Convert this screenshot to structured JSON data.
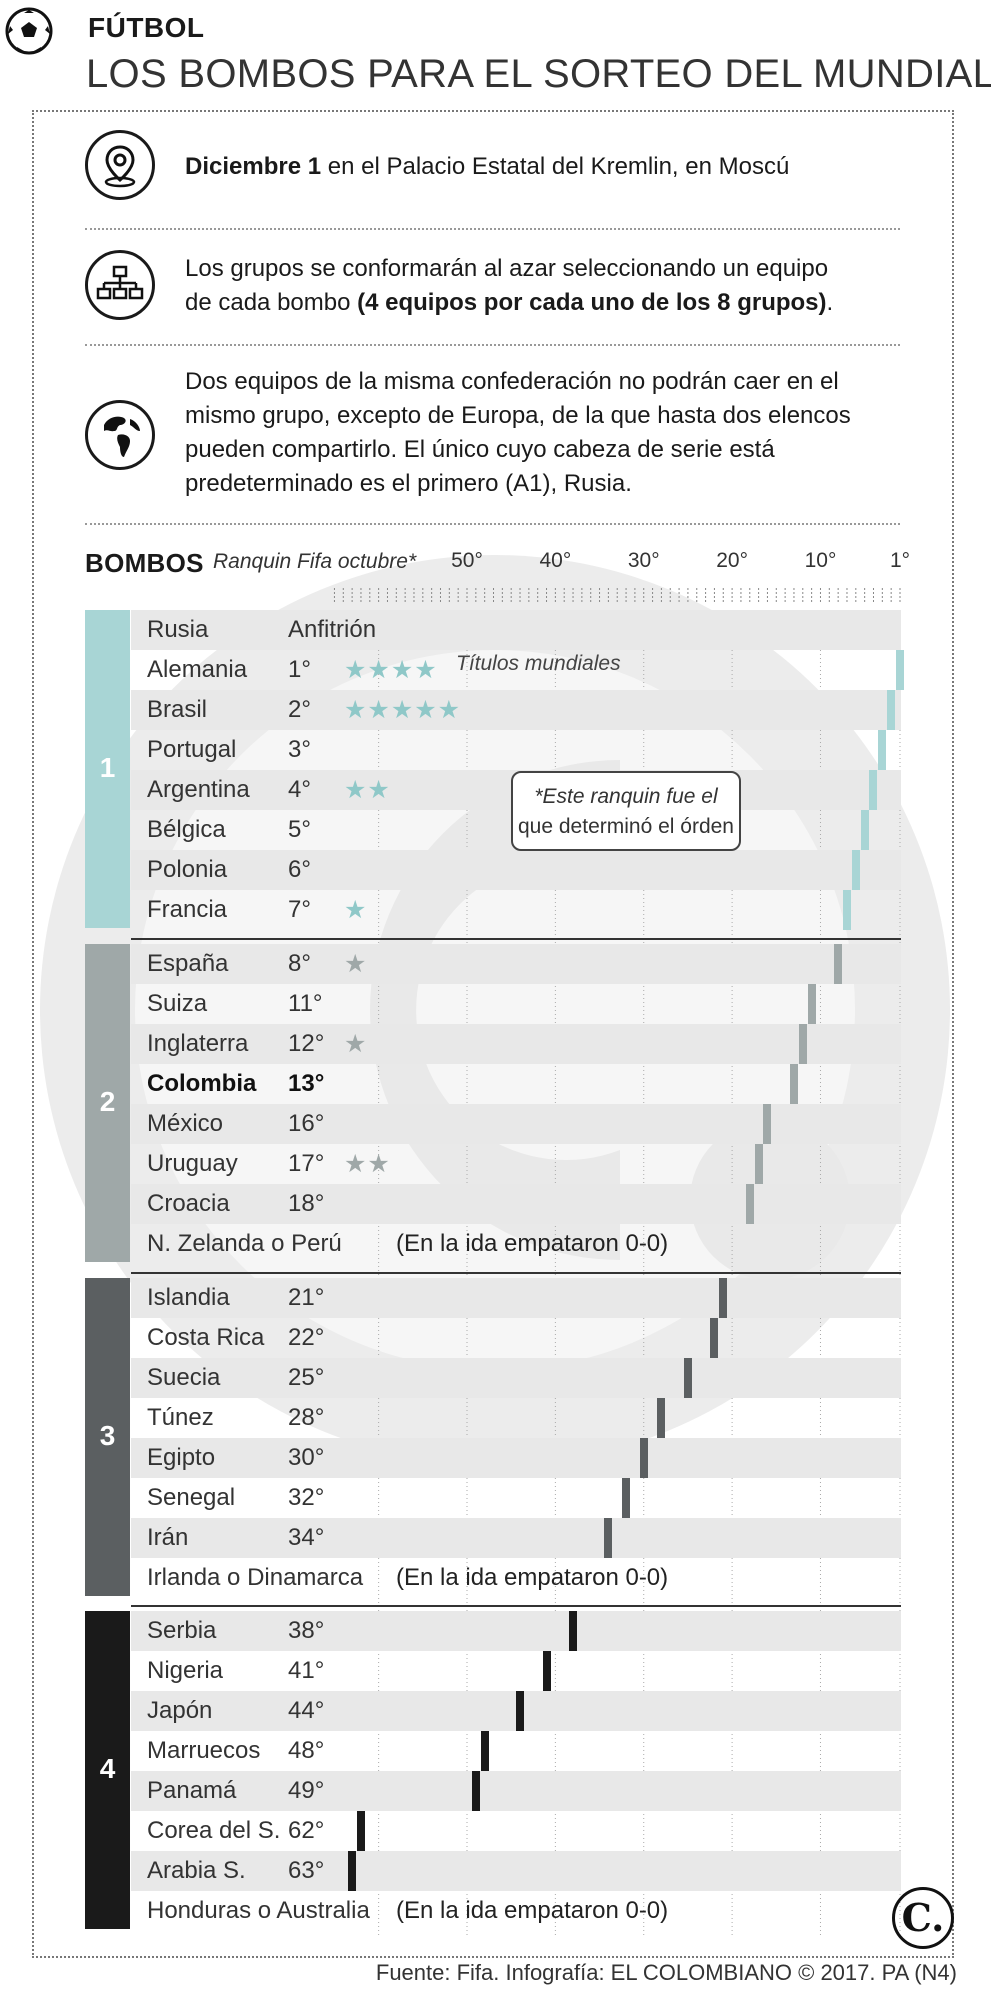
{
  "header": {
    "section": "FÚTBOL",
    "title": "LOS BOMBOS PARA EL SORTEO DEL MUNDIAL"
  },
  "info": {
    "date_bold": "Diciembre 1",
    "date_rest": " en el Palacio Estatal del Kremlin, en Moscú",
    "groups_line1": "Los grupos se conformarán al azar seleccionando un equipo",
    "groups_line2_plain": "de cada bombo ",
    "groups_line2_bold": "(4 equipos por cada uno de los 8 grupos)",
    "groups_line2_end": ".",
    "conf_line1": "Dos equipos de la misma confederación no podrán caer en el",
    "conf_line2": "mismo grupo, excepto de Europa, de la que hasta dos elencos",
    "conf_line3": "pueden compartirlo. El único cuyo cabeza de serie está",
    "conf_line4": "predeterminado es el primero (A1), Rusia."
  },
  "colors": {
    "pot1": "#a8d5d5",
    "pot2": "#9fa8a8",
    "pot3": "#5b5f61",
    "pot4": "#1a1a1a",
    "star": "#8fc8c8"
  },
  "chart_data": {
    "type": "bar",
    "title": "BOMBOS",
    "xlabel": "Ranquin Fifa octubre*",
    "x_ticks": [
      "50°",
      "40°",
      "30°",
      "20°",
      "10°",
      "1°"
    ],
    "x_tick_values": [
      50,
      40,
      30,
      20,
      10,
      1
    ],
    "xlim": [
      65,
      1
    ],
    "titles_legend": "Títulos mundiales",
    "note": "*Este ranquin fue el que determinó el órden",
    "note_line1": "*Este ranquin fue el",
    "note_line2": "que determinó el órden",
    "tie_note": "(En la ida empataron 0-0)",
    "pots": [
      {
        "pot": "1",
        "teams": [
          {
            "name": "Rusia",
            "rank_label": "Anfitrión",
            "rank": null,
            "titles": 0
          },
          {
            "name": "Alemania",
            "rank_label": "1°",
            "rank": 1,
            "titles": 4
          },
          {
            "name": "Brasil",
            "rank_label": "2°",
            "rank": 2,
            "titles": 5
          },
          {
            "name": "Portugal",
            "rank_label": "3°",
            "rank": 3,
            "titles": 0
          },
          {
            "name": "Argentina",
            "rank_label": "4°",
            "rank": 4,
            "titles": 2
          },
          {
            "name": "Bélgica",
            "rank_label": "5°",
            "rank": 5,
            "titles": 0
          },
          {
            "name": "Polonia",
            "rank_label": "6°",
            "rank": 6,
            "titles": 0
          },
          {
            "name": "Francia",
            "rank_label": "7°",
            "rank": 7,
            "titles": 1
          }
        ]
      },
      {
        "pot": "2",
        "teams": [
          {
            "name": "España",
            "rank_label": "8°",
            "rank": 8,
            "titles": 1
          },
          {
            "name": "Suiza",
            "rank_label": "11°",
            "rank": 11,
            "titles": 0
          },
          {
            "name": "Inglaterra",
            "rank_label": "12°",
            "rank": 12,
            "titles": 1
          },
          {
            "name": "Colombia",
            "rank_label": "13°",
            "rank": 13,
            "titles": 0,
            "highlight": true
          },
          {
            "name": "México",
            "rank_label": "16°",
            "rank": 16,
            "titles": 0
          },
          {
            "name": "Uruguay",
            "rank_label": "17°",
            "rank": 17,
            "titles": 2
          },
          {
            "name": "Croacia",
            "rank_label": "18°",
            "rank": 18,
            "titles": 0
          },
          {
            "name": "N. Zelanda o Perú",
            "rank_label": "",
            "rank": null,
            "titles": 0,
            "tie": true
          }
        ]
      },
      {
        "pot": "3",
        "teams": [
          {
            "name": "Islandia",
            "rank_label": "21°",
            "rank": 21,
            "titles": 0
          },
          {
            "name": "Costa Rica",
            "rank_label": "22°",
            "rank": 22,
            "titles": 0
          },
          {
            "name": "Suecia",
            "rank_label": "25°",
            "rank": 25,
            "titles": 0
          },
          {
            "name": "Túnez",
            "rank_label": "28°",
            "rank": 28,
            "titles": 0
          },
          {
            "name": "Egipto",
            "rank_label": "30°",
            "rank": 30,
            "titles": 0
          },
          {
            "name": "Senegal",
            "rank_label": "32°",
            "rank": 32,
            "titles": 0
          },
          {
            "name": "Irán",
            "rank_label": "34°",
            "rank": 34,
            "titles": 0
          },
          {
            "name": "Irlanda o Dinamarca",
            "rank_label": "",
            "rank": null,
            "titles": 0,
            "tie": true
          }
        ]
      },
      {
        "pot": "4",
        "teams": [
          {
            "name": "Serbia",
            "rank_label": "38°",
            "rank": 38,
            "titles": 0
          },
          {
            "name": "Nigeria",
            "rank_label": "41°",
            "rank": 41,
            "titles": 0
          },
          {
            "name": "Japón",
            "rank_label": "44°",
            "rank": 44,
            "titles": 0
          },
          {
            "name": "Marruecos",
            "rank_label": "48°",
            "rank": 48,
            "titles": 0
          },
          {
            "name": "Panamá",
            "rank_label": "49°",
            "rank": 49,
            "titles": 0
          },
          {
            "name": "Corea del S.",
            "rank_label": "62°",
            "rank": 62,
            "titles": 0
          },
          {
            "name": "Arabia S.",
            "rank_label": "63°",
            "rank": 63,
            "titles": 0
          },
          {
            "name": "Honduras o Australia",
            "rank_label": "",
            "rank": null,
            "titles": 0,
            "tie": true
          }
        ]
      }
    ]
  },
  "footer": {
    "source": "Fuente: Fifa. Infografía: EL COLOMBIANO © 2017. PA (N4)",
    "logo": "C."
  }
}
